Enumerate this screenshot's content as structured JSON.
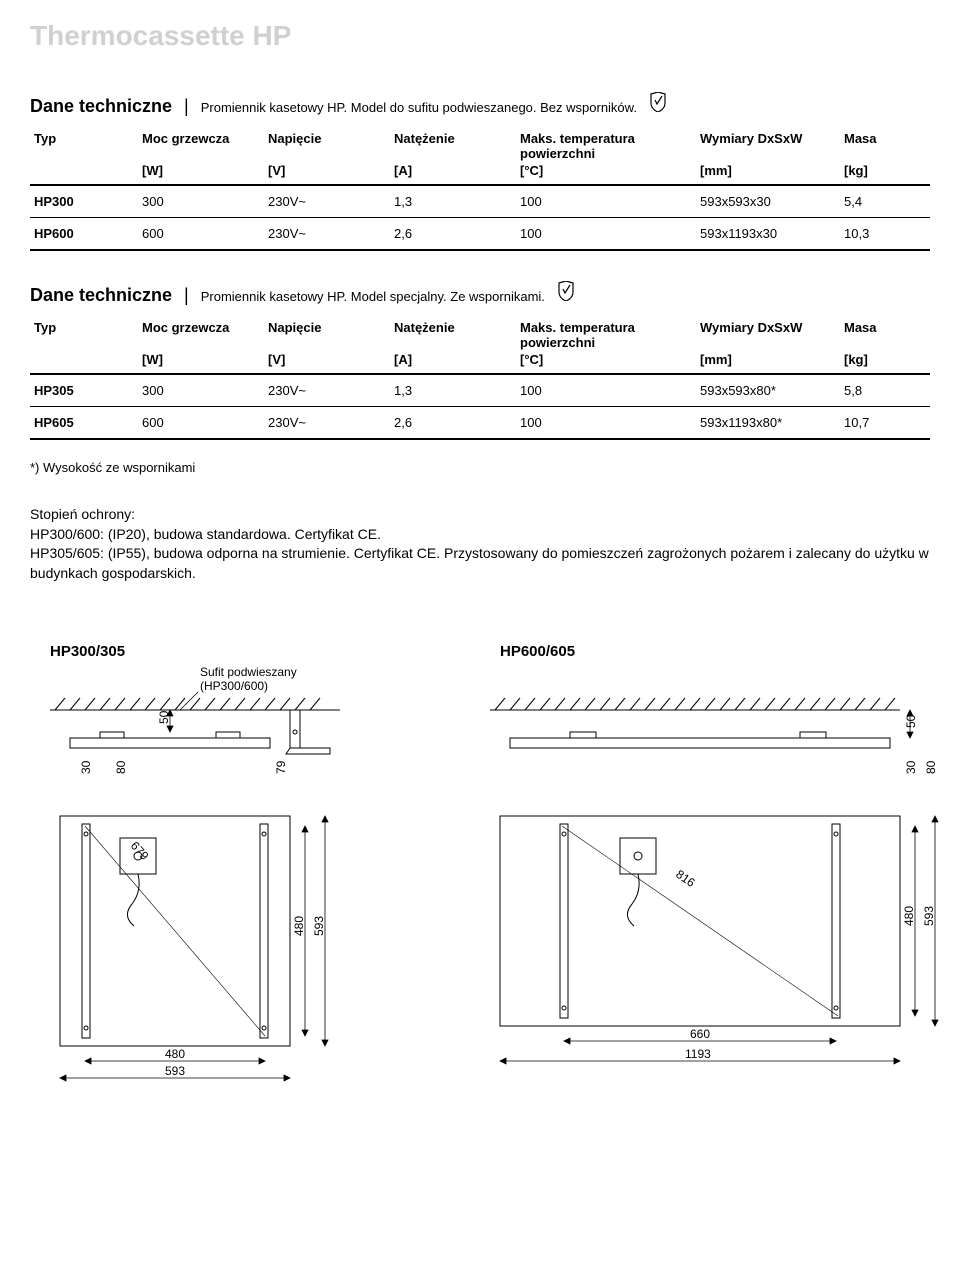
{
  "page_title": "Thermocassette HP",
  "section1": {
    "title": "Dane techniczne",
    "subtitle": "Promiennik kasetowy HP. Model do sufitu podwieszanego. Bez wsporników."
  },
  "section2": {
    "title": "Dane techniczne",
    "subtitle": "Promiennik kasetowy HP. Model specjalny. Ze wspornikami."
  },
  "table_headers": {
    "typ": "Typ",
    "moc": "Moc grzewcza",
    "napiecie": "Napięcie",
    "natezenie": "Natężenie",
    "maks_temp": "Maks. temperatura powierzchni",
    "wymiary": "Wymiary DxSxW",
    "masa": "Masa"
  },
  "table_units": {
    "moc": "[W]",
    "napiecie": "[V]",
    "natezenie": "[A]",
    "maks_temp": "[°C]",
    "wymiary": "[mm]",
    "masa": "[kg]"
  },
  "table1": {
    "rows": [
      {
        "typ": "HP300",
        "moc": "300",
        "napiecie": "230V~",
        "natezenie": "1,3",
        "temp": "100",
        "wymiary": "593x593x30",
        "masa": "5,4"
      },
      {
        "typ": "HP600",
        "moc": "600",
        "napiecie": "230V~",
        "natezenie": "2,6",
        "temp": "100",
        "wymiary": "593x1193x30",
        "masa": "10,3"
      }
    ]
  },
  "table2": {
    "rows": [
      {
        "typ": "HP305",
        "moc": "300",
        "napiecie": "230V~",
        "natezenie": "1,3",
        "temp": "100",
        "wymiary": "593x593x80*",
        "masa": "5,8"
      },
      {
        "typ": "HP605",
        "moc": "600",
        "napiecie": "230V~",
        "natezenie": "2,6",
        "temp": "100",
        "wymiary": "593x1193x80*",
        "masa": "10,7"
      }
    ]
  },
  "footnote": "*) Wysokość ze wspornikami",
  "protection": {
    "heading": "Stopień ochrony:",
    "line1": "HP300/600: (IP20), budowa standardowa. Certyfikat CE.",
    "line2": "HP305/605: (IP55), budowa odporna na strumienie. Certyfikat CE. Przystosowany do pomieszczeń zagrożonych pożarem i zalecany do użytku w budynkach gospodarskich."
  },
  "diagram1": {
    "title": "HP300/305",
    "sub": "Sufit podwieszany (HP300/600)",
    "dims": {
      "h50": "50",
      "h30": "30",
      "h80": "80",
      "h79": "79",
      "diag": "679",
      "v480": "480",
      "v593": "593",
      "b480": "480",
      "b593": "593"
    }
  },
  "diagram2": {
    "title": "HP600/605",
    "dims": {
      "h50": "50",
      "h30": "30",
      "h80": "80",
      "diag": "816",
      "v480": "480",
      "v593": "593",
      "b660": "660",
      "b1193": "1193"
    }
  },
  "colors": {
    "bg": "#ffffff",
    "text": "#000000",
    "title_gray": "#d0d0d0",
    "line": "#000000"
  },
  "col_widths": [
    "12%",
    "14%",
    "14%",
    "14%",
    "20%",
    "16%",
    "10%"
  ]
}
